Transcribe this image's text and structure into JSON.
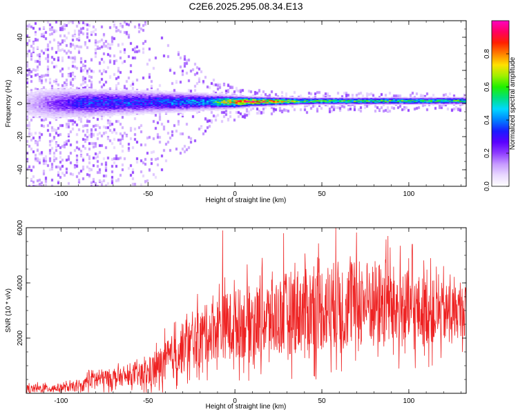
{
  "figure": {
    "title": "C2E6.2025.295.08.34.E13"
  },
  "colorbar": {
    "label": "Normalized spectral amplitude",
    "ticks": [
      0.0,
      0.2,
      0.4,
      0.6,
      0.8
    ],
    "tick_labels": [
      "0.0",
      "0.2",
      "0.4",
      "0.6",
      "0.8"
    ],
    "range": [
      0,
      1
    ],
    "colormap": [
      "#ffffff",
      "#e9d9ff",
      "#c79bff",
      "#8f3cff",
      "#5a00ff",
      "#1a1aff",
      "#0080ff",
      "#00d8ff",
      "#00e080",
      "#20f000",
      "#a0f000",
      "#ffe000",
      "#ff8000",
      "#ff2000",
      "#ff0060",
      "#ff00c0"
    ]
  },
  "chart_data": [
    {
      "type": "heatmap",
      "title": "",
      "xlabel": "Height of straight line (km)",
      "ylabel": "Frequency (Hz)",
      "xlim": [
        -120,
        133
      ],
      "ylim": [
        -50,
        50
      ],
      "xticks": [
        -100,
        -50,
        0,
        50,
        100
      ],
      "xtick_labels": [
        "-100",
        "-50",
        "0",
        "50",
        "100"
      ],
      "yticks": [
        -40,
        -20,
        0,
        20,
        40
      ],
      "ytick_labels": [
        "-40",
        "-20",
        "0",
        "20",
        "40"
      ],
      "grid": false,
      "description_of_values": {
        "x_breakpoints": [
          -120,
          -85,
          -50,
          -15,
          0,
          10,
          40,
          133
        ],
        "center_freq_hz": [
          0,
          0.5,
          1,
          1.2,
          1,
          1.3,
          1.6,
          1.8
        ],
        "core_halfwidth_hz": [
          8,
          6,
          5,
          3.5,
          2.5,
          2,
          1.5,
          1.5
        ],
        "core_amplitude": [
          0.1,
          0.35,
          0.35,
          0.45,
          0.85,
          0.9,
          0.6,
          0.55
        ],
        "scatter_halfwidth_hz": [
          50,
          50,
          50,
          15,
          10,
          8,
          6,
          5
        ],
        "scatter_density": [
          0.35,
          0.35,
          0.12,
          0.1,
          0.1,
          0.08,
          0.06,
          0.05
        ]
      }
    },
    {
      "type": "line",
      "title": "",
      "xlabel": "Height of straight line (km)",
      "ylabel": "SNR (10 * v/v)",
      "xlim": [
        -120,
        133
      ],
      "ylim": [
        0,
        6000
      ],
      "xticks": [
        -100,
        -50,
        0,
        50,
        100
      ],
      "xtick_labels": [
        "-100",
        "-50",
        "0",
        "50",
        "100"
      ],
      "yticks": [
        2000,
        4000,
        6000
      ],
      "ytick_labels": [
        "2000",
        "4000",
        "6000"
      ],
      "grid": false,
      "series": [
        {
          "color": "#ee2222",
          "envelope_x": [
            -120,
            -100,
            -87,
            -85,
            -60,
            -50,
            -40,
            -30,
            -20,
            -10,
            0,
            20,
            35,
            60,
            80,
            100,
            120,
            133
          ],
          "envelope_base": [
            150,
            200,
            250,
            500,
            600,
            700,
            1100,
            1600,
            2000,
            2400,
            2500,
            2700,
            3000,
            3200,
            3300,
            3000,
            2900,
            3000
          ],
          "envelope_amp": [
            250,
            250,
            300,
            600,
            500,
            900,
            1300,
            1500,
            1700,
            1900,
            2100,
            2300,
            2600,
            2700,
            2600,
            2400,
            1800,
            1500
          ],
          "peak_values": [
            {
              "x": -7,
              "y": 5900
            },
            {
              "x": 28,
              "y": 5800
            },
            {
              "x": 58,
              "y": 6000
            },
            {
              "x": 88,
              "y": 5700
            },
            {
              "x": 102,
              "y": 5400
            }
          ]
        }
      ]
    }
  ]
}
